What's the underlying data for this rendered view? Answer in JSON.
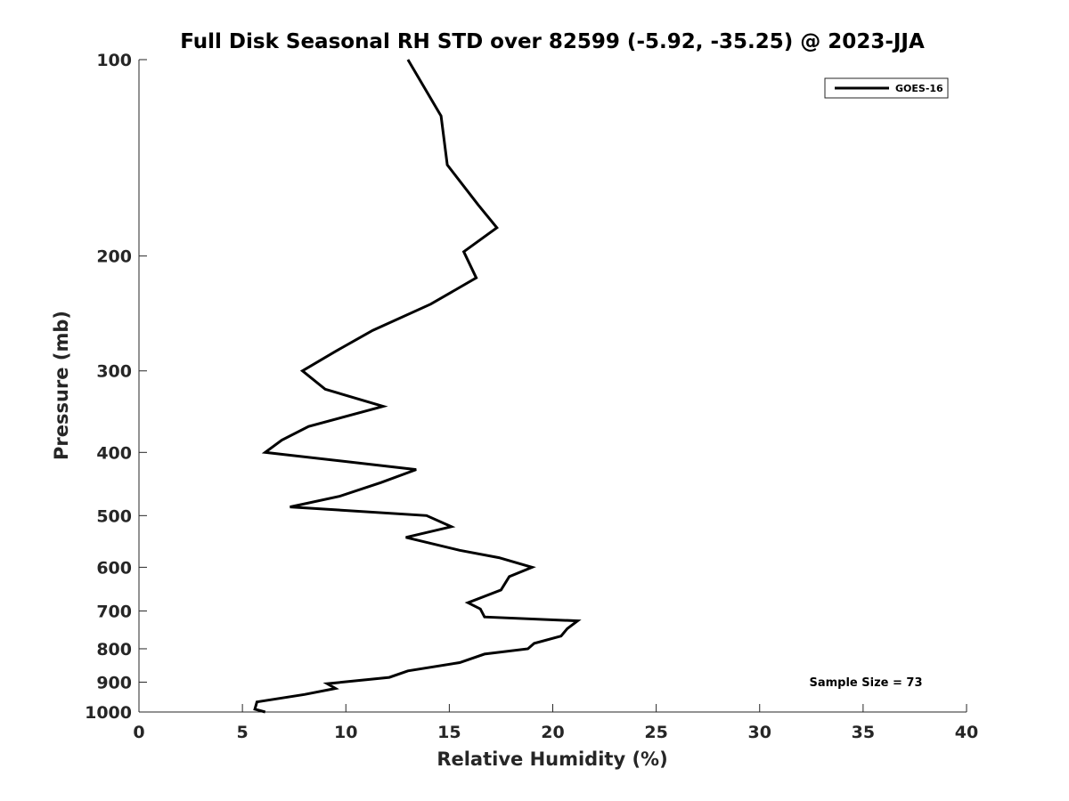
{
  "chart_data": {
    "type": "line",
    "title": "Full Disk Seasonal RH STD over 82599 (-5.92, -35.25) @ 2023-JJA",
    "xlabel": "Relative Humidity (%)",
    "ylabel": "Pressure (mb)",
    "xlim": [
      0,
      40
    ],
    "ylim": [
      100,
      1000
    ],
    "y_scale": "log",
    "y_reversed": true,
    "grid": false,
    "x_ticks": [
      0,
      5,
      10,
      15,
      20,
      25,
      30,
      35,
      40
    ],
    "x_tick_labels": [
      "0",
      "5",
      "10",
      "15",
      "20",
      "25",
      "30",
      "35",
      "40"
    ],
    "y_ticks": [
      100,
      200,
      300,
      400,
      500,
      600,
      700,
      800,
      900,
      1000
    ],
    "y_tick_labels": [
      "100",
      "200",
      "300",
      "400",
      "500",
      "600",
      "700",
      "800",
      "900",
      "1000"
    ],
    "legend_position": "top-right",
    "annotation": "Sample Size = 73",
    "series": [
      {
        "name": "GOES-16",
        "color": "#000000",
        "x": [
          13.0,
          14.6,
          14.9,
          16.4,
          17.3,
          15.7,
          16.3,
          14.1,
          11.3,
          9.5,
          7.9,
          9.0,
          11.8,
          8.2,
          6.9,
          6.1,
          13.4,
          11.7,
          9.7,
          7.3,
          13.9,
          15.1,
          12.9,
          15.5,
          17.4,
          19.0,
          17.9,
          17.5,
          15.9,
          16.5,
          16.7,
          21.2,
          20.7,
          20.4,
          19.1,
          18.8,
          16.7,
          15.5,
          13.0,
          12.1,
          9.1,
          9.5,
          8.0,
          5.7,
          5.6,
          6.1
        ],
        "y": [
          100,
          122,
          145,
          167,
          181,
          197,
          216,
          237,
          260,
          280,
          300,
          320,
          340,
          365,
          383,
          400,
          425,
          445,
          467,
          485,
          500,
          520,
          540,
          565,
          580,
          600,
          620,
          650,
          680,
          695,
          715,
          725,
          745,
          765,
          785,
          800,
          815,
          840,
          865,
          885,
          905,
          920,
          940,
          965,
          990,
          1000
        ]
      }
    ]
  }
}
